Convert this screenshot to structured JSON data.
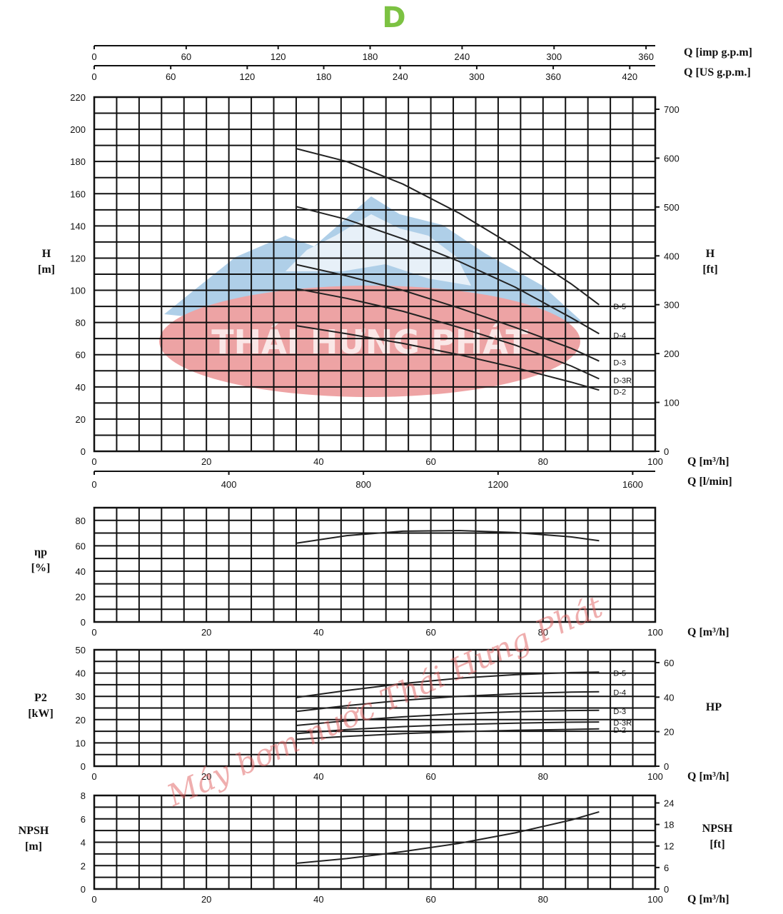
{
  "title": "D",
  "colors": {
    "title": "#7cc242",
    "watermark_red": "#e0585a",
    "watermark_blue": "#6fa8d6"
  },
  "watermark": {
    "logo_text": "THÁI HƯNG PHÁT",
    "text": "Máy bơm nước Thái Hưng Phát"
  },
  "chart_data": [
    {
      "id": "head",
      "type": "line",
      "title": "D",
      "xlabel": "Q [m³/h]",
      "ylabel": "H [m]",
      "ylabel_right": "H [ft]",
      "xlim": [
        0,
        100
      ],
      "ylim": [
        0,
        220
      ],
      "xticks": [
        0,
        20,
        40,
        60,
        80,
        100
      ],
      "yticks": [
        0,
        20,
        40,
        60,
        80,
        100,
        120,
        140,
        160,
        180,
        200,
        220
      ],
      "yticks_right": [
        0,
        100,
        200,
        300,
        400,
        500,
        600,
        700
      ],
      "top_axes": [
        {
          "label": "Q [imp g.p.m]",
          "ticks": [
            0,
            60,
            120,
            180,
            240,
            300,
            360
          ],
          "max": 366
        },
        {
          "label": "Q [US g.p.m.]",
          "ticks": [
            0,
            60,
            120,
            180,
            240,
            300,
            360,
            420
          ],
          "max": 440
        }
      ],
      "bottom_axis2": {
        "label": "Q [l/min]",
        "ticks": [
          0,
          400,
          800,
          1200,
          1600
        ],
        "max": 1667
      },
      "series": [
        {
          "name": "D-5",
          "x": [
            36,
            45,
            55,
            65,
            75,
            85,
            90
          ],
          "y": [
            188,
            180,
            166,
            148,
            127,
            104,
            91
          ]
        },
        {
          "name": "D-4",
          "x": [
            36,
            45,
            55,
            65,
            75,
            85,
            90
          ],
          "y": [
            152,
            144,
            132,
            118,
            102,
            83,
            73
          ]
        },
        {
          "name": "D-3",
          "x": [
            36,
            45,
            55,
            65,
            75,
            85,
            90
          ],
          "y": [
            116,
            109,
            100,
            89,
            77,
            64,
            56
          ]
        },
        {
          "name": "D-3R",
          "x": [
            36,
            45,
            55,
            65,
            75,
            85,
            90
          ],
          "y": [
            101,
            95,
            87,
            77,
            66,
            53,
            45
          ]
        },
        {
          "name": "D-2",
          "x": [
            36,
            45,
            55,
            65,
            75,
            85,
            90
          ],
          "y": [
            78,
            73,
            67,
            60,
            52,
            43,
            38
          ]
        }
      ]
    },
    {
      "id": "efficiency",
      "type": "line",
      "xlabel": "Q [m³/h]",
      "ylabel": "ηp [%]",
      "xlim": [
        0,
        100
      ],
      "ylim": [
        0,
        90
      ],
      "xticks": [
        0,
        20,
        40,
        60,
        80,
        100
      ],
      "yticks": [
        0,
        20,
        40,
        60,
        80
      ],
      "series": [
        {
          "name": "η",
          "x": [
            36,
            45,
            55,
            65,
            75,
            85,
            90
          ],
          "y": [
            62,
            68,
            71.5,
            72,
            70.5,
            67,
            64
          ]
        }
      ]
    },
    {
      "id": "power",
      "type": "line",
      "xlabel": "Q [m³/h]",
      "ylabel": "P2 [kW]",
      "ylabel_right": "HP",
      "xlim": [
        0,
        100
      ],
      "ylim": [
        0,
        50
      ],
      "xticks": [
        0,
        20,
        40,
        60,
        80,
        100
      ],
      "yticks": [
        0,
        10,
        20,
        30,
        40,
        50
      ],
      "yticks_right": [
        0,
        20,
        40,
        60
      ],
      "series": [
        {
          "name": "D-5",
          "x": [
            36,
            45,
            55,
            65,
            75,
            85,
            90
          ],
          "y": [
            29.5,
            32.5,
            35.5,
            37.8,
            39.3,
            40.2,
            40.4
          ]
        },
        {
          "name": "D-4",
          "x": [
            36,
            45,
            55,
            65,
            75,
            85,
            90
          ],
          "y": [
            23.5,
            26,
            28.3,
            30,
            31.1,
            31.8,
            32
          ]
        },
        {
          "name": "D-3",
          "x": [
            36,
            45,
            55,
            65,
            75,
            85,
            90
          ],
          "y": [
            17.5,
            19.5,
            21.2,
            22.5,
            23.4,
            23.9,
            24
          ]
        },
        {
          "name": "D-3R",
          "x": [
            36,
            45,
            55,
            65,
            75,
            85,
            90
          ],
          "y": [
            14,
            15.7,
            17,
            17.9,
            18.5,
            18.9,
            19
          ]
        },
        {
          "name": "D-2",
          "x": [
            36,
            45,
            55,
            65,
            75,
            85,
            90
          ],
          "y": [
            11.5,
            12.8,
            14,
            14.8,
            15.4,
            15.8,
            16
          ]
        }
      ]
    },
    {
      "id": "npsh",
      "type": "line",
      "xlabel": "Q [m³/h]",
      "ylabel": "NPSH [m]",
      "ylabel_right": "NPSH [ft]",
      "xlim": [
        0,
        100
      ],
      "ylim": [
        0,
        8
      ],
      "xticks": [
        0,
        20,
        40,
        60,
        80,
        100
      ],
      "yticks": [
        0,
        2,
        4,
        6,
        8
      ],
      "yticks_right": [
        0,
        6,
        12,
        18,
        24
      ],
      "series": [
        {
          "name": "NPSH",
          "x": [
            36,
            45,
            55,
            65,
            75,
            85,
            90
          ],
          "y": [
            2.2,
            2.6,
            3.2,
            3.9,
            4.8,
            5.9,
            6.6
          ]
        }
      ]
    }
  ]
}
